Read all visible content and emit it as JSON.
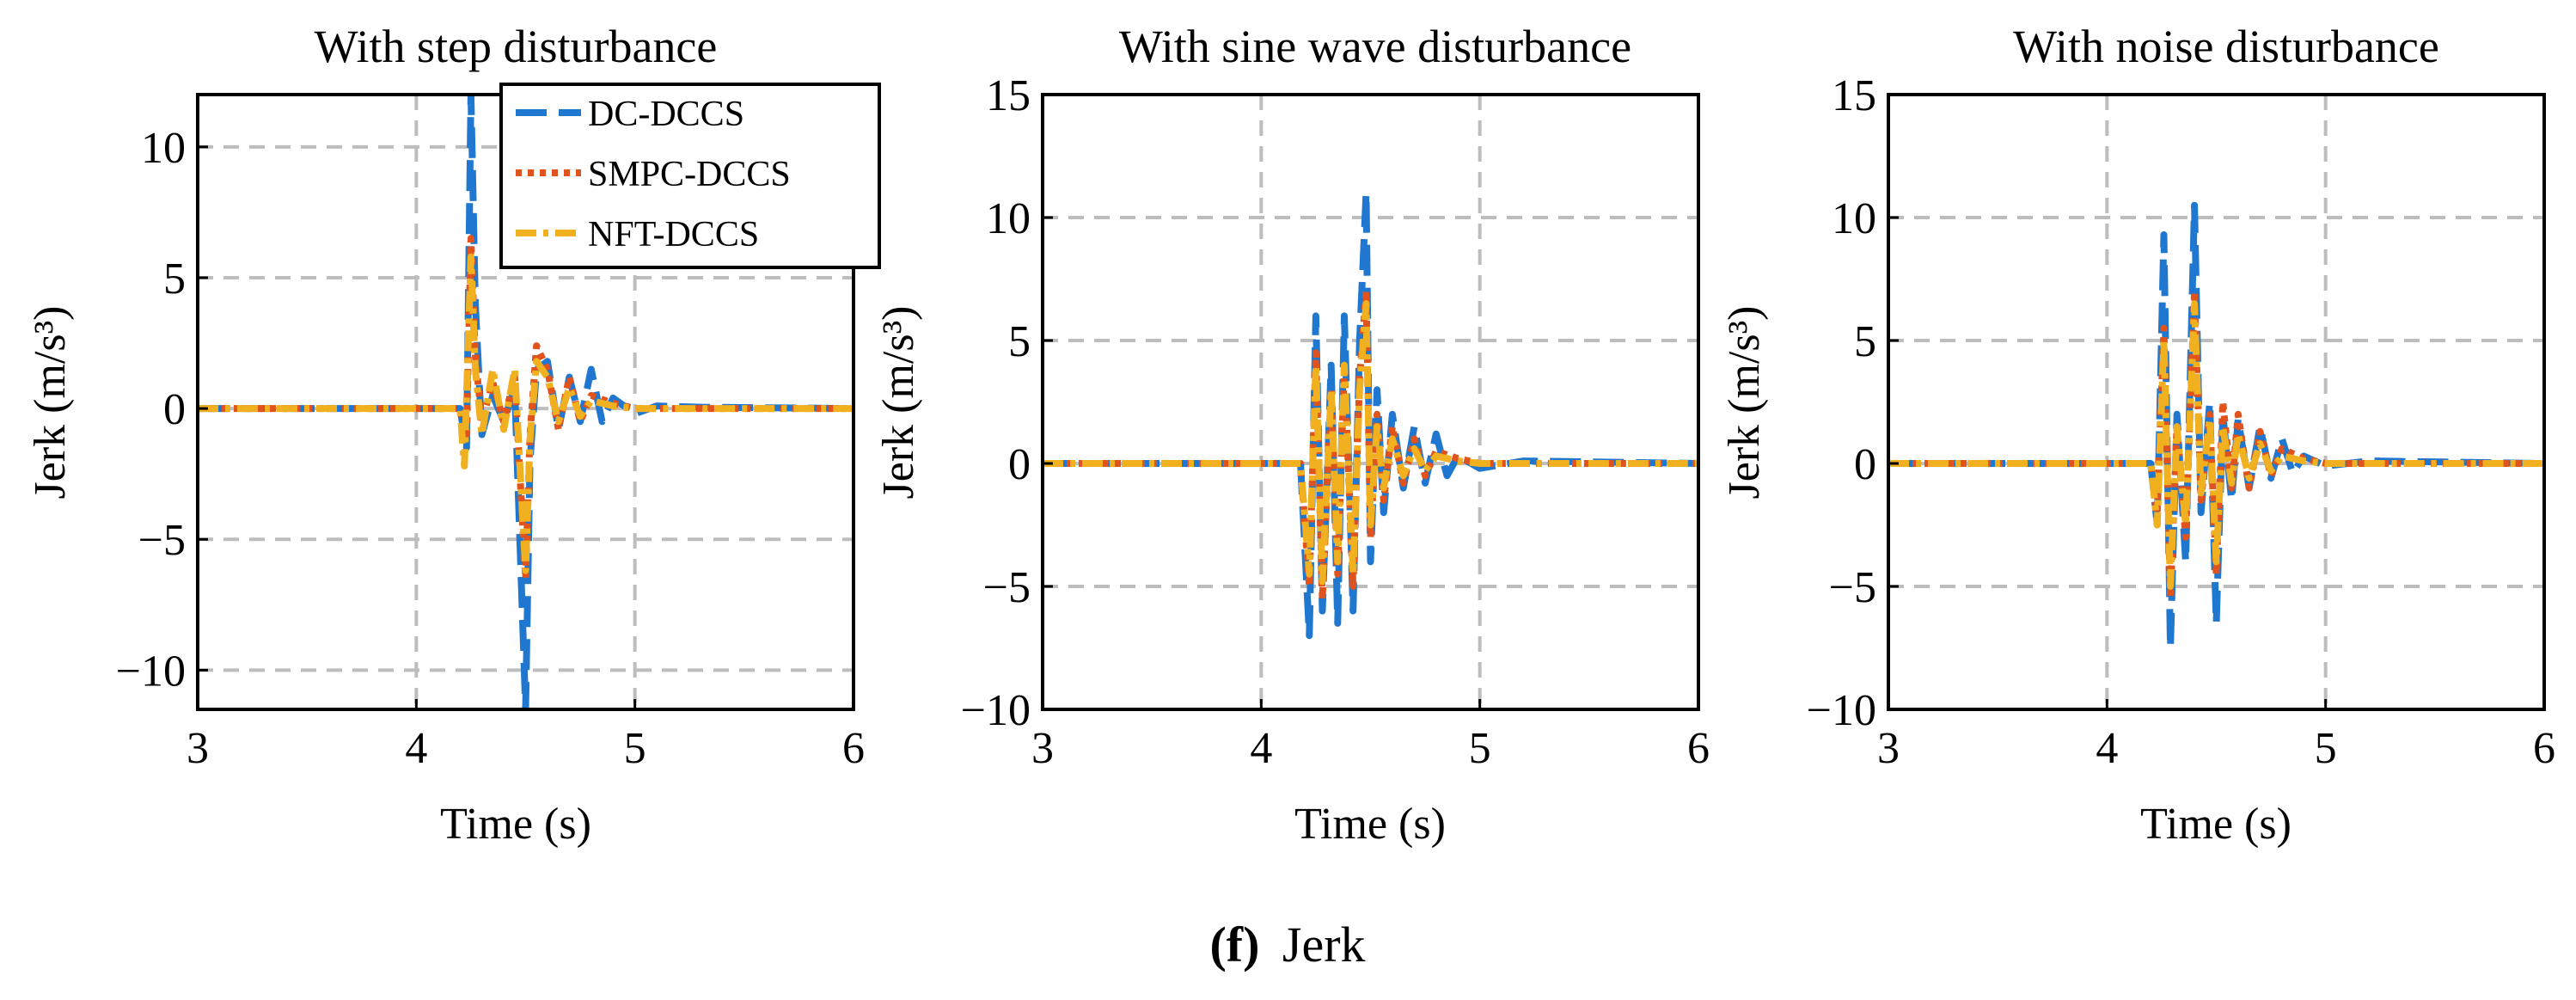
{
  "colors": {
    "dc": "#1f77d0",
    "smpc": "#e0531c",
    "nft": "#f0b01f",
    "grid": "#bdbdbd",
    "frame": "#000000"
  },
  "caption": {
    "label": "(f)",
    "text": "Jerk"
  },
  "legend": {
    "placement": "top-right of first panel",
    "entries": [
      "DC-DCCS",
      "SMPC-DCCS",
      "NFT-DCCS"
    ]
  },
  "chart_data": [
    {
      "type": "line",
      "title": "With step disturbance",
      "xlabel": "Time (s)",
      "ylabel": "Jerk (m/s³)",
      "xlim": [
        3,
        6
      ],
      "ylim": [
        -11.5,
        12
      ],
      "xticks": [
        "3",
        "4",
        "5",
        "6"
      ],
      "yticks": [
        "10",
        "5",
        "0",
        "−5",
        "−10"
      ],
      "grid": true,
      "series": [
        {
          "name": "DC-DCCS",
          "x": [
            3.0,
            4.2,
            4.23,
            4.25,
            4.27,
            4.3,
            4.35,
            4.4,
            4.45,
            4.5,
            4.52,
            4.55,
            4.6,
            4.65,
            4.7,
            4.75,
            4.8,
            4.85,
            4.9,
            5.0,
            5.1,
            5.3,
            6.0
          ],
          "y": [
            0,
            0,
            -1.5,
            12.0,
            4.0,
            -1.0,
            0.5,
            -0.5,
            0.8,
            -11.5,
            -2.0,
            1.5,
            1.8,
            -0.8,
            1.2,
            -0.5,
            1.5,
            -0.5,
            0.4,
            -0.2,
            0.1,
            0.05,
            0
          ]
        },
        {
          "name": "SMPC-DCCS",
          "x": [
            3.0,
            4.2,
            4.23,
            4.25,
            4.27,
            4.3,
            4.35,
            4.4,
            4.45,
            4.5,
            4.52,
            4.55,
            4.6,
            4.65,
            4.7,
            4.75,
            4.8,
            4.9,
            5.0,
            6.0
          ],
          "y": [
            0,
            0,
            -1.0,
            6.5,
            2.0,
            -0.5,
            1.0,
            -0.5,
            1.2,
            -6.5,
            -1.0,
            2.4,
            1.5,
            -0.8,
            1.2,
            -0.5,
            0.5,
            0.2,
            0,
            0
          ]
        },
        {
          "name": "NFT-DCCS",
          "x": [
            3.0,
            4.2,
            4.22,
            4.25,
            4.27,
            4.3,
            4.35,
            4.4,
            4.45,
            4.5,
            4.52,
            4.55,
            4.6,
            4.65,
            4.7,
            4.75,
            4.8,
            4.9,
            5.0,
            6.0
          ],
          "y": [
            0,
            0,
            -2.2,
            5.8,
            1.5,
            -1.0,
            1.5,
            -0.8,
            1.5,
            -6.2,
            -1.2,
            1.8,
            1.2,
            -0.5,
            0.8,
            -0.3,
            0.3,
            0.1,
            0,
            0
          ]
        }
      ]
    },
    {
      "type": "line",
      "title": "With sine wave disturbance",
      "xlabel": "Time (s)",
      "ylabel": "Jerk (m/s³)",
      "xlim": [
        3,
        6
      ],
      "ylim": [
        -10,
        15
      ],
      "xticks": [
        "3",
        "4",
        "5",
        "6"
      ],
      "yticks": [
        "15",
        "10",
        "5",
        "0",
        "−5",
        "−10"
      ],
      "grid": true,
      "series": [
        {
          "name": "DC-DCCS",
          "x": [
            3.0,
            4.18,
            4.22,
            4.25,
            4.28,
            4.32,
            4.35,
            4.38,
            4.42,
            4.45,
            4.48,
            4.5,
            4.53,
            4.56,
            4.6,
            4.65,
            4.7,
            4.75,
            4.8,
            4.85,
            4.9,
            5.0,
            5.2,
            6.0
          ],
          "y": [
            0,
            0,
            -7.0,
            6.0,
            -6.0,
            4.0,
            -6.5,
            6.0,
            -6.0,
            5.0,
            11.0,
            -4.0,
            3.0,
            -2.0,
            2.0,
            -1.0,
            1.5,
            -0.8,
            1.2,
            -0.5,
            0.3,
            -0.2,
            0.1,
            0
          ]
        },
        {
          "name": "SMPC-DCCS",
          "x": [
            3.0,
            4.18,
            4.22,
            4.25,
            4.28,
            4.32,
            4.35,
            4.38,
            4.42,
            4.45,
            4.48,
            4.5,
            4.53,
            4.56,
            4.6,
            4.65,
            4.7,
            4.75,
            4.8,
            4.9,
            5.0,
            6.0
          ],
          "y": [
            0,
            0,
            -5.0,
            4.5,
            -5.5,
            3.0,
            -4.5,
            4.0,
            -5.0,
            3.5,
            7.0,
            -3.0,
            2.0,
            -1.5,
            1.5,
            -0.8,
            1.0,
            -0.5,
            0.5,
            0.2,
            0,
            0
          ]
        },
        {
          "name": "NFT-DCCS",
          "x": [
            3.0,
            4.18,
            4.22,
            4.25,
            4.28,
            4.32,
            4.35,
            4.38,
            4.42,
            4.45,
            4.48,
            4.5,
            4.53,
            4.56,
            4.6,
            4.65,
            4.7,
            4.75,
            4.8,
            4.9,
            5.0,
            6.0
          ],
          "y": [
            0,
            0,
            -4.5,
            4.0,
            -4.8,
            3.0,
            -4.0,
            4.0,
            -4.5,
            3.0,
            6.5,
            -2.5,
            1.5,
            -1.0,
            1.0,
            -0.5,
            0.6,
            -0.3,
            0.3,
            0.1,
            0,
            0
          ]
        }
      ]
    },
    {
      "type": "line",
      "title": "With noise disturbance",
      "xlabel": "Time (s)",
      "ylabel": "Jerk (m/s³)",
      "xlim": [
        3,
        6
      ],
      "ylim": [
        -10,
        15
      ],
      "xticks": [
        "3",
        "4",
        "5",
        "6"
      ],
      "yticks": [
        "15",
        "10",
        "5",
        "0",
        "−5",
        "−10"
      ],
      "grid": true,
      "series": [
        {
          "name": "DC-DCCS",
          "x": [
            3.0,
            4.2,
            4.23,
            4.26,
            4.29,
            4.32,
            4.36,
            4.4,
            4.43,
            4.47,
            4.5,
            4.53,
            4.57,
            4.6,
            4.65,
            4.7,
            4.75,
            4.8,
            4.85,
            4.9,
            5.0,
            5.2,
            6.0
          ],
          "y": [
            0,
            0,
            -2.5,
            9.3,
            -7.5,
            2.0,
            -4.0,
            10.5,
            -2.0,
            2.5,
            -6.5,
            2.0,
            -1.5,
            1.8,
            -1.0,
            1.5,
            -0.6,
            1.0,
            -0.4,
            0.3,
            -0.1,
            0.1,
            0
          ]
        },
        {
          "name": "SMPC-DCCS",
          "x": [
            3.0,
            4.2,
            4.23,
            4.26,
            4.29,
            4.32,
            4.36,
            4.4,
            4.43,
            4.47,
            4.5,
            4.53,
            4.57,
            4.6,
            4.65,
            4.7,
            4.75,
            4.8,
            4.9,
            5.0,
            6.0
          ],
          "y": [
            0,
            0,
            -2.0,
            5.5,
            -5.5,
            1.5,
            -3.0,
            7.0,
            -1.5,
            2.0,
            -4.5,
            2.5,
            -1.0,
            2.0,
            -1.0,
            1.3,
            -0.5,
            0.6,
            0.2,
            0,
            0
          ]
        },
        {
          "name": "NFT-DCCS",
          "x": [
            3.0,
            4.2,
            4.23,
            4.26,
            4.29,
            4.32,
            4.36,
            4.4,
            4.43,
            4.47,
            4.5,
            4.53,
            4.57,
            4.6,
            4.65,
            4.7,
            4.75,
            4.8,
            4.9,
            5.0,
            6.0
          ],
          "y": [
            0,
            0,
            -2.5,
            5.0,
            -5.0,
            1.5,
            -2.5,
            6.5,
            -1.2,
            1.8,
            -4.0,
            1.5,
            -0.8,
            1.2,
            -0.6,
            0.8,
            -0.3,
            0.3,
            0.1,
            0,
            0
          ]
        }
      ]
    }
  ]
}
